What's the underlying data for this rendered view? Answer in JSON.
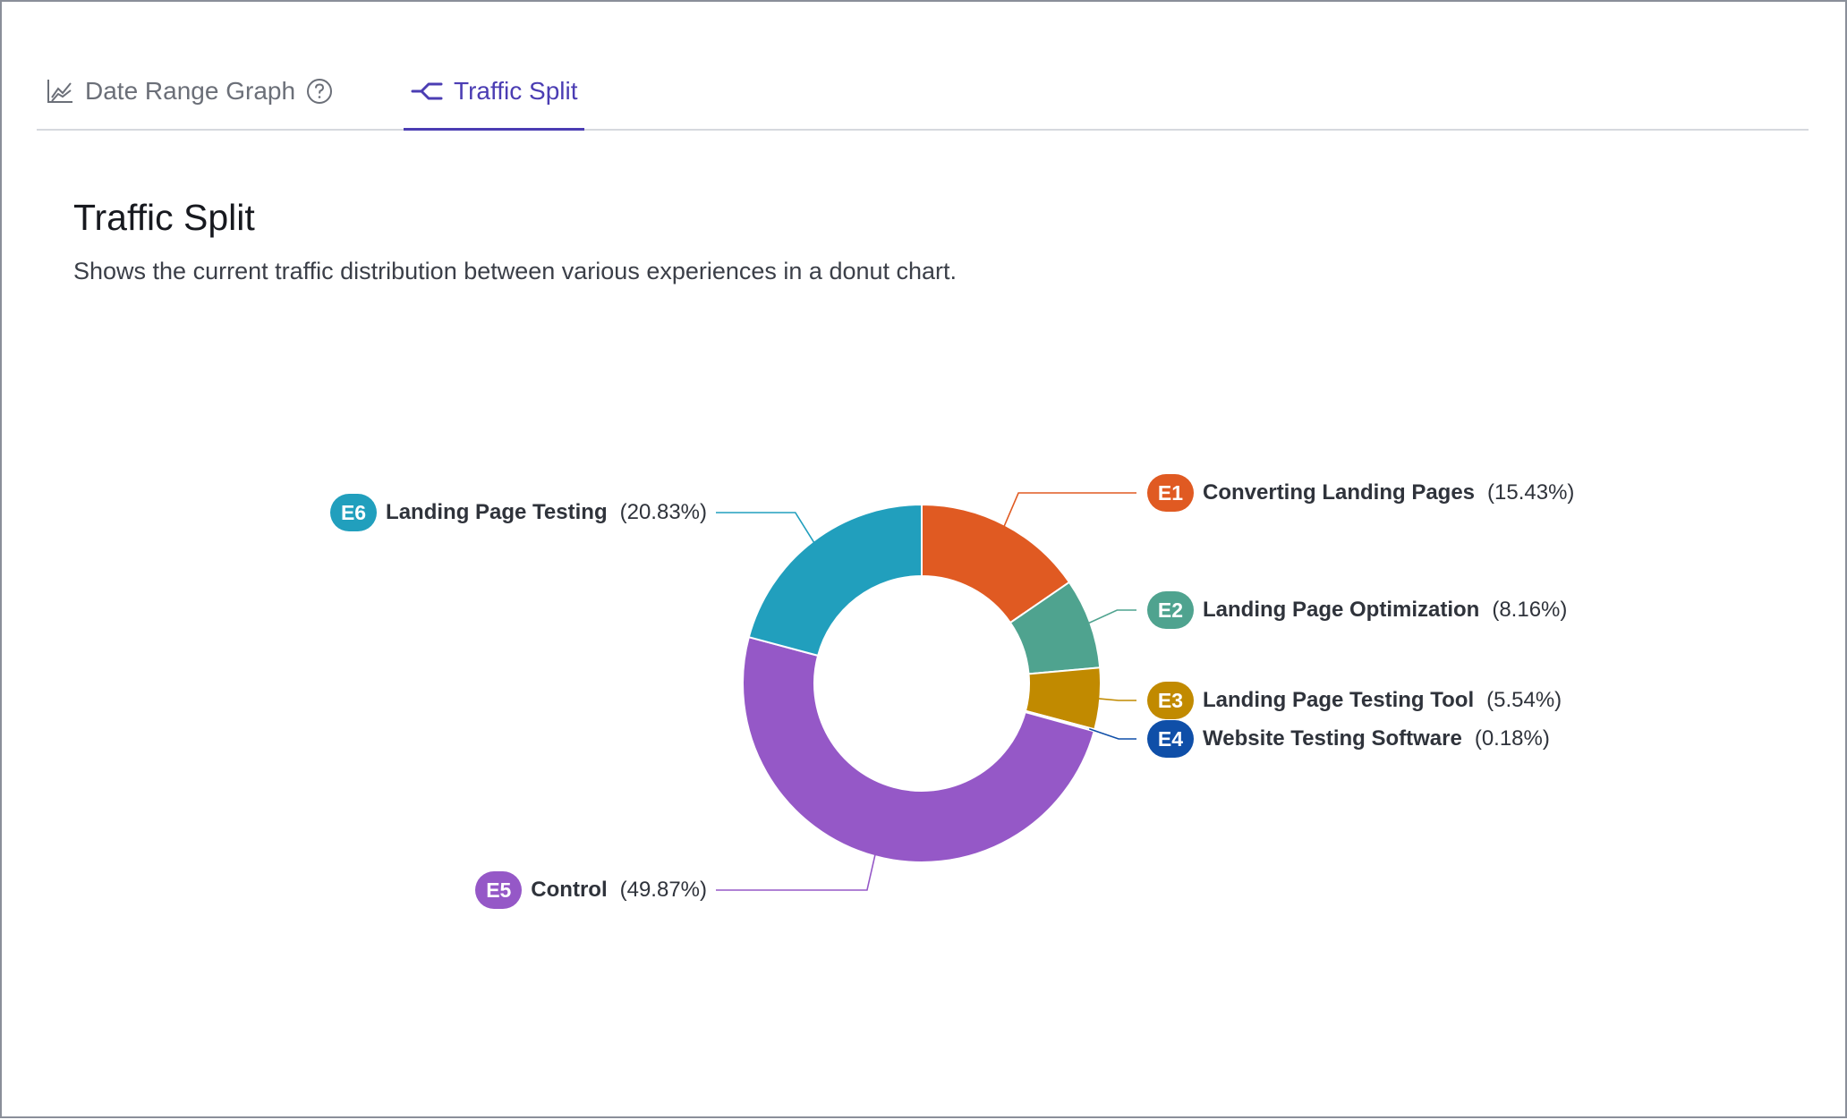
{
  "tabs": [
    {
      "label": "Date Range Graph",
      "icon": "line-chart-icon",
      "help_icon": "help-circle-icon",
      "active": false
    },
    {
      "label": "Traffic Split",
      "icon": "split-arrow-icon",
      "active": true
    }
  ],
  "section": {
    "title": "Traffic Split",
    "description": "Shows the current traffic distribution between various experiences in a donut chart."
  },
  "chart_data": {
    "type": "pie",
    "donut": true,
    "title": "",
    "slices": [
      {
        "id": "E1",
        "label": "Converting Landing Pages",
        "percent_label": "(15.43%)",
        "value": 15.43,
        "color": "#e05a22"
      },
      {
        "id": "E2",
        "label": "Landing Page Optimization",
        "percent_label": "(8.16%)",
        "value": 8.16,
        "color": "#4fa38f"
      },
      {
        "id": "E3",
        "label": "Landing Page Testing Tool",
        "percent_label": "(5.54%)",
        "value": 5.54,
        "color": "#c18a00"
      },
      {
        "id": "E4",
        "label": "Website Testing Software",
        "percent_label": "(0.18%)",
        "value": 0.18,
        "color": "#0f4fa8"
      },
      {
        "id": "E5",
        "label": "Control",
        "percent_label": "(49.87%)",
        "value": 49.87,
        "color": "#9558c7"
      },
      {
        "id": "E6",
        "label": "Landing Page Testing",
        "percent_label": "(20.83%)",
        "value": 20.83,
        "color": "#219fbd"
      }
    ]
  }
}
